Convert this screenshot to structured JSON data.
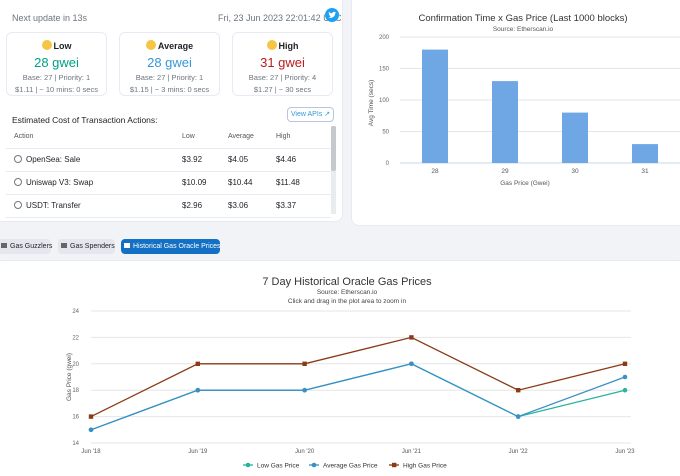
{
  "header": {
    "next_update": "Next update in 13s",
    "datetime": "Fri, 23 Jun 2023 22:01:42 UTC"
  },
  "gas": [
    {
      "title": "Low",
      "value": "28 gwei",
      "detail": "Base: 27 | Priority: 1",
      "cost": "$1.11 | ~ 10 mins: 0 secs",
      "color": "#00a186"
    },
    {
      "title": "Average",
      "value": "28 gwei",
      "detail": "Base: 27 | Priority: 1",
      "cost": "$1.15 | ~ 3 mins: 0 secs",
      "color": "#3498db"
    },
    {
      "title": "High",
      "value": "31 gwei",
      "detail": "Base: 27 | Priority: 4",
      "cost": "$1.27 | ~ 30 secs",
      "color": "#b91c1c"
    }
  ],
  "estimate": {
    "title": "Estimated Cost of Transaction Actions:",
    "view_apis": "View APIs",
    "headers": [
      "Action",
      "Low",
      "Average",
      "High"
    ],
    "rows": [
      {
        "action": "OpenSea: Sale",
        "low": "$3.92",
        "avg": "$4.05",
        "high": "$4.46"
      },
      {
        "action": "Uniswap V3: Swap",
        "low": "$10.09",
        "avg": "$10.44",
        "high": "$11.48"
      },
      {
        "action": "USDT: Transfer",
        "low": "$2.96",
        "avg": "$3.06",
        "high": "$3.37"
      }
    ]
  },
  "tabs": [
    "Gas Guzzlers",
    "Gas Spenders",
    "Historical Gas Oracle Prices"
  ],
  "chart_data": [
    {
      "type": "bar",
      "title": "Confirmation Time x Gas Price (Last 1000 blocks)",
      "subtitle": "Source: Etherscan.io",
      "xlabel": "Gas Price (Gwei)",
      "ylabel": "Avg Time (secs)",
      "categories": [
        "28",
        "29",
        "30",
        "31"
      ],
      "values": [
        180,
        130,
        80,
        30
      ],
      "ylim": [
        0,
        200
      ],
      "yticks": [
        0,
        50,
        100,
        150,
        200
      ],
      "color": "#6fa7e4"
    },
    {
      "type": "line",
      "title": "7 Day Historical Oracle Gas Prices",
      "subtitle": "Source: Etherscan.io",
      "subtitle2": "Click and drag in the plot area to zoom in",
      "ylabel": "Gas Price (gwei)",
      "x": [
        "Jun '18",
        "Jun '19",
        "Jun '20",
        "Jun '21",
        "Jun '22",
        "Jun '23"
      ],
      "ylim": [
        14,
        24
      ],
      "yticks": [
        14,
        16,
        18,
        20,
        22,
        24
      ],
      "series": [
        {
          "name": "Low Gas Price",
          "values": [
            15,
            18,
            18,
            20,
            16,
            18
          ],
          "color": "#26b4a0"
        },
        {
          "name": "Average Gas Price",
          "values": [
            15,
            18,
            18,
            20,
            16,
            19
          ],
          "color": "#3a8fc7"
        },
        {
          "name": "High Gas Price",
          "values": [
            16,
            20,
            20,
            22,
            18,
            20
          ],
          "color": "#8b3a16"
        }
      ]
    }
  ]
}
